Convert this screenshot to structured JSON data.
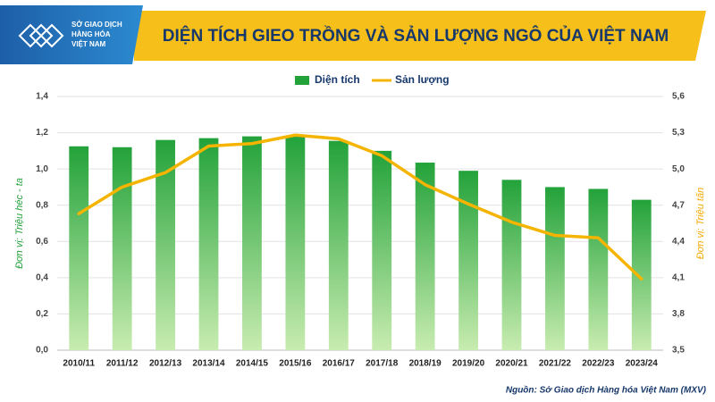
{
  "logo": {
    "lines": [
      "SỞ GIAO DỊCH",
      "HÀNG HÓA",
      "VIỆT NAM"
    ]
  },
  "chart_data": {
    "type": "bar",
    "title": "DIỆN TÍCH GIEO TRỒNG VÀ SẢN LƯỢNG NGÔ CỦA VIỆT NAM",
    "source": "Nguồn: Sở Giao dịch Hàng hóa Việt Nam (MXV)",
    "y_label": "Đơn vị: Triệu héc - ta",
    "y2_label": "Đơn vị: Triệu tấn",
    "categories": [
      "2010/11",
      "2011/12",
      "2012/13",
      "2013/14",
      "2014/15",
      "2015/16",
      "2016/17",
      "2017/18",
      "2018/19",
      "2019/20",
      "2020/21",
      "2021/22",
      "2022/23",
      "2023/24"
    ],
    "series": [
      {
        "name": "Diện tích",
        "type": "bar",
        "color": "#23a23a",
        "values": [
          1.125,
          1.12,
          1.16,
          1.17,
          1.18,
          1.18,
          1.155,
          1.1,
          1.035,
          0.99,
          0.94,
          0.9,
          0.89,
          0.83
        ]
      },
      {
        "name": "Sản lượng",
        "type": "line",
        "axis": "y2",
        "color": "#f5b400",
        "values": [
          4.63,
          4.85,
          4.97,
          5.19,
          5.21,
          5.28,
          5.25,
          5.11,
          4.87,
          4.71,
          4.56,
          4.45,
          4.43,
          4.09
        ]
      }
    ],
    "ylim": [
      0,
      1.4
    ],
    "yticks": [
      {
        "value": 0,
        "label": "0,0"
      },
      {
        "value": 0.2,
        "label": "0,2"
      },
      {
        "value": 0.4,
        "label": "0,4"
      },
      {
        "value": 0.6,
        "label": "0,6"
      },
      {
        "value": 0.8,
        "label": "0,8"
      },
      {
        "value": 1.0,
        "label": "1,0"
      },
      {
        "value": 1.2,
        "label": "1,2"
      },
      {
        "value": 1.4,
        "label": "1,4"
      }
    ],
    "y2lim": [
      3.5,
      5.6
    ],
    "y2ticks": [
      {
        "value": 3.5,
        "label": "3,5"
      },
      {
        "value": 3.8,
        "label": "3,8"
      },
      {
        "value": 4.1,
        "label": "4,1"
      },
      {
        "value": 4.4,
        "label": "4,4"
      },
      {
        "value": 4.7,
        "label": "4,7"
      },
      {
        "value": 5.0,
        "label": "5,0"
      },
      {
        "value": 5.3,
        "label": "5,3"
      },
      {
        "value": 5.6,
        "label": "5,6"
      }
    ],
    "grid": true
  }
}
